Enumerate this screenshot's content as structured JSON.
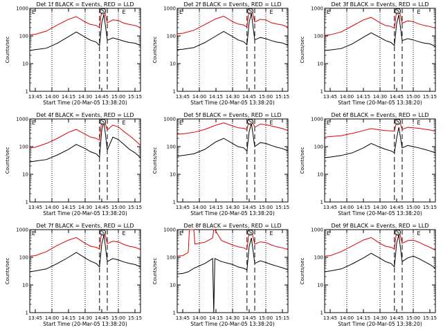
{
  "figure": {
    "type": "line",
    "grid": "3x3",
    "y_scale": "log",
    "ylim": [
      1,
      1000
    ],
    "y_ticks": [
      "1",
      "10",
      "100",
      "1000"
    ],
    "x_ticks": [
      "13:45",
      "14:00",
      "14:15",
      "14:30",
      "14:45",
      "15:00",
      "15:15"
    ],
    "xlim_minutes_after_1345": [
      -5,
      95
    ],
    "dotted_minutes_after_1345": [
      15,
      45,
      75
    ],
    "dashed_minutes_after_1345": [
      58,
      65
    ],
    "ylabel": "Counts/sec",
    "xlabel": "Start Time (20-Mar-05 13:38:20)",
    "left_marker": "E",
    "right_marker": "E",
    "circle_marker": "S",
    "colors": {
      "events": "#000000",
      "lld": "#dd0000"
    }
  },
  "chart_data": [
    {
      "title": "Det 1f BLACK = Events, RED = LLD",
      "series": [
        {
          "name": "Events",
          "x": [
            -5,
            0,
            10,
            20,
            30,
            37,
            45,
            50,
            55,
            58,
            60,
            62,
            65,
            70,
            75,
            80,
            85,
            90,
            95
          ],
          "values": [
            30,
            32,
            36,
            55,
            95,
            140,
            90,
            70,
            60,
            45,
            300,
            600,
            70,
            85,
            75,
            65,
            58,
            55,
            45
          ]
        },
        {
          "name": "LLD",
          "x": [
            -5,
            0,
            10,
            20,
            30,
            37,
            45,
            50,
            55,
            58,
            60,
            62,
            65,
            70,
            75,
            80,
            85,
            90,
            95
          ],
          "values": [
            110,
            115,
            150,
            250,
            400,
            500,
            320,
            260,
            240,
            200,
            900,
            1000,
            300,
            380,
            360,
            290,
            260,
            240,
            200
          ]
        }
      ]
    },
    {
      "title": "Det 2f BLACK = Events, RED = LLD",
      "series": [
        {
          "name": "Events",
          "x": [
            -5,
            0,
            10,
            20,
            30,
            37,
            45,
            50,
            55,
            58,
            60,
            62,
            65,
            70,
            75,
            80,
            85,
            90,
            95
          ],
          "values": [
            32,
            33,
            38,
            58,
            100,
            145,
            95,
            72,
            62,
            48,
            320,
            650,
            72,
            88,
            80,
            68,
            60,
            56,
            46
          ]
        },
        {
          "name": "LLD",
          "x": [
            -5,
            0,
            10,
            20,
            30,
            37,
            45,
            50,
            55,
            58,
            60,
            62,
            65,
            70,
            75,
            80,
            85,
            90,
            95
          ],
          "values": [
            120,
            125,
            160,
            260,
            420,
            520,
            330,
            270,
            250,
            210,
            950,
            1000,
            320,
            400,
            380,
            300,
            270,
            250,
            210
          ]
        }
      ]
    },
    {
      "title": "Det 3f BLACK = Events, RED = LLD",
      "series": [
        {
          "name": "Events",
          "x": [
            -5,
            0,
            10,
            20,
            30,
            37,
            45,
            50,
            55,
            58,
            60,
            62,
            65,
            70,
            75,
            80,
            85,
            90,
            95
          ],
          "values": [
            30,
            31,
            35,
            52,
            90,
            130,
            88,
            68,
            58,
            45,
            280,
            580,
            68,
            80,
            72,
            62,
            55,
            52,
            42
          ]
        },
        {
          "name": "LLD",
          "x": [
            -5,
            0,
            10,
            20,
            30,
            37,
            45,
            50,
            55,
            58,
            60,
            62,
            65,
            70,
            75,
            80,
            85,
            90,
            95
          ],
          "values": [
            105,
            110,
            140,
            230,
            380,
            470,
            300,
            240,
            220,
            190,
            850,
            1000,
            290,
            350,
            330,
            270,
            240,
            220,
            190
          ]
        }
      ]
    },
    {
      "title": "Det 4f BLACK = Events, RED = LLD",
      "series": [
        {
          "name": "Events",
          "x": [
            -5,
            0,
            10,
            20,
            30,
            37,
            45,
            50,
            55,
            58,
            60,
            62,
            65,
            70,
            75,
            80,
            85,
            90,
            95
          ],
          "values": [
            28,
            30,
            34,
            50,
            80,
            120,
            85,
            65,
            55,
            42,
            400,
            800,
            75,
            220,
            180,
            120,
            80,
            60,
            40
          ]
        },
        {
          "name": "LLD",
          "x": [
            -5,
            0,
            10,
            20,
            30,
            37,
            45,
            50,
            55,
            58,
            60,
            62,
            65,
            70,
            75,
            80,
            85,
            90,
            95
          ],
          "values": [
            90,
            95,
            130,
            200,
            330,
            420,
            280,
            220,
            200,
            170,
            900,
            1000,
            400,
            600,
            520,
            350,
            250,
            170,
            110
          ]
        }
      ]
    },
    {
      "title": "Det 5f BLACK = Events, RED = LLD",
      "series": [
        {
          "name": "Events",
          "x": [
            -5,
            0,
            10,
            20,
            30,
            37,
            45,
            50,
            55,
            58,
            60,
            62,
            65,
            70,
            75,
            80,
            85,
            90,
            95
          ],
          "values": [
            45,
            48,
            55,
            80,
            150,
            200,
            130,
            100,
            90,
            70,
            350,
            700,
            100,
            140,
            130,
            110,
            95,
            85,
            70
          ]
        },
        {
          "name": "LLD",
          "x": [
            -5,
            0,
            10,
            20,
            30,
            37,
            45,
            50,
            55,
            58,
            60,
            62,
            65,
            70,
            75,
            80,
            85,
            90,
            95
          ],
          "values": [
            280,
            290,
            330,
            420,
            600,
            720,
            560,
            480,
            460,
            420,
            950,
            1000,
            500,
            650,
            620,
            560,
            500,
            450,
            380
          ]
        }
      ]
    },
    {
      "title": "Det 6f BLACK = Events, RED = LLD",
      "series": [
        {
          "name": "Events",
          "x": [
            -5,
            0,
            10,
            20,
            30,
            37,
            45,
            50,
            55,
            58,
            60,
            62,
            65,
            70,
            75,
            80,
            85,
            90,
            95
          ],
          "values": [
            40,
            42,
            48,
            60,
            90,
            130,
            95,
            80,
            70,
            60,
            200,
            500,
            90,
            110,
            100,
            90,
            80,
            70,
            60
          ]
        },
        {
          "name": "LLD",
          "x": [
            -5,
            0,
            10,
            20,
            30,
            37,
            45,
            50,
            55,
            58,
            60,
            62,
            65,
            70,
            75,
            80,
            85,
            90,
            95
          ],
          "values": [
            220,
            230,
            250,
            300,
            380,
            450,
            400,
            380,
            370,
            360,
            800,
            1000,
            420,
            500,
            480,
            460,
            430,
            400,
            360
          ]
        }
      ]
    },
    {
      "title": "Det 7f BLACK = Events, RED = LLD",
      "series": [
        {
          "name": "Events",
          "x": [
            -5,
            0,
            10,
            20,
            30,
            37,
            45,
            50,
            55,
            58,
            60,
            62,
            65,
            70,
            75,
            80,
            85,
            90,
            95
          ],
          "values": [
            30,
            32,
            38,
            60,
            100,
            150,
            95,
            72,
            60,
            45,
            300,
            650,
            70,
            90,
            80,
            68,
            60,
            55,
            45
          ]
        },
        {
          "name": "LLD",
          "x": [
            -5,
            0,
            10,
            20,
            30,
            37,
            45,
            50,
            55,
            58,
            60,
            62,
            65,
            70,
            75,
            80,
            85,
            90,
            95
          ],
          "values": [
            110,
            115,
            160,
            270,
            420,
            520,
            320,
            250,
            230,
            200,
            900,
            1000,
            310,
            380,
            360,
            290,
            250,
            230,
            190
          ]
        }
      ]
    },
    {
      "title": "Det 8f BLACK = Events, RED = LLD",
      "series": [
        {
          "name": "Events",
          "x": [
            -5,
            0,
            5,
            10,
            20,
            27,
            28,
            29,
            35,
            45,
            50,
            55,
            58,
            60,
            62,
            65,
            70,
            75,
            80,
            85,
            90,
            95
          ],
          "values": [
            25,
            26,
            30,
            40,
            60,
            90,
            1,
            90,
            70,
            55,
            45,
            40,
            35,
            250,
            500,
            60,
            75,
            65,
            55,
            48,
            42,
            35
          ]
        },
        {
          "name": "LLD",
          "x": [
            -5,
            0,
            5,
            6,
            8,
            10,
            11,
            20,
            27,
            28,
            29,
            35,
            45,
            50,
            55,
            58,
            60,
            62,
            65,
            70,
            75,
            80,
            85,
            90,
            95
          ],
          "values": [
            110,
            115,
            150,
            1000,
            1000,
            1000,
            300,
            350,
            500,
            1000,
            1000,
            400,
            280,
            240,
            220,
            190,
            900,
            1000,
            300,
            360,
            340,
            280,
            240,
            220,
            190
          ]
        }
      ]
    },
    {
      "title": "Det 9f BLACK = Events, RED = LLD",
      "series": [
        {
          "name": "Events",
          "x": [
            -5,
            0,
            10,
            20,
            30,
            37,
            45,
            50,
            55,
            58,
            60,
            62,
            65,
            70,
            75,
            80,
            85,
            90,
            95
          ],
          "values": [
            30,
            32,
            38,
            58,
            95,
            140,
            92,
            70,
            60,
            45,
            320,
            650,
            70,
            95,
            110,
            90,
            70,
            55,
            40
          ]
        },
        {
          "name": "LLD",
          "x": [
            -5,
            0,
            10,
            20,
            30,
            37,
            45,
            50,
            55,
            58,
            60,
            62,
            65,
            70,
            75,
            80,
            85,
            90,
            95
          ],
          "values": [
            110,
            115,
            160,
            260,
            420,
            520,
            320,
            250,
            230,
            200,
            950,
            1000,
            320,
            400,
            420,
            350,
            280,
            230,
            180
          ]
        }
      ]
    }
  ]
}
